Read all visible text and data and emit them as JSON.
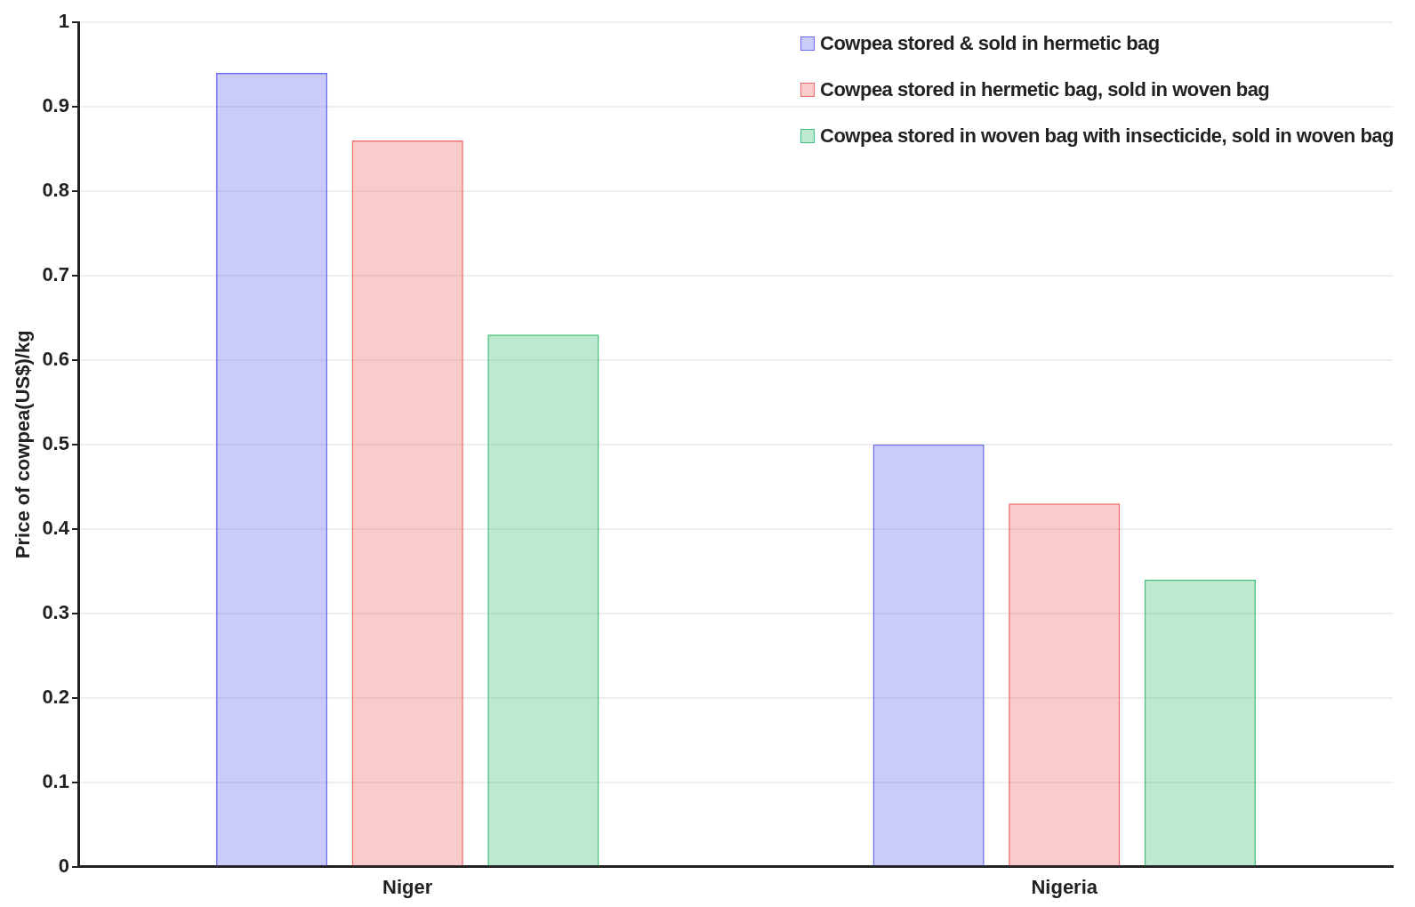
{
  "chart_data": {
    "type": "bar",
    "ylabel": "Price of cowpea(US$)/kg",
    "categories": [
      "Niger",
      "Nigeria"
    ],
    "series": [
      {
        "name": "Cowpea stored & sold in hermetic bag",
        "color": "#6b6bf0",
        "values": [
          0.94,
          0.5
        ]
      },
      {
        "name": "Cowpea stored in hermetic bag, sold in woven bag",
        "color": "#f06b6b",
        "values": [
          0.86,
          0.43
        ]
      },
      {
        "name": "Cowpea stored in woven bag with insecticide, sold in woven bag",
        "color": "#45c07a",
        "values": [
          0.63,
          0.34
        ]
      }
    ],
    "ylim": [
      0,
      1
    ],
    "yticks": [
      0,
      0.1,
      0.2,
      0.3,
      0.4,
      0.5,
      0.6,
      0.7,
      0.8,
      0.9,
      1
    ],
    "grid": "y",
    "legend": "top right"
  }
}
